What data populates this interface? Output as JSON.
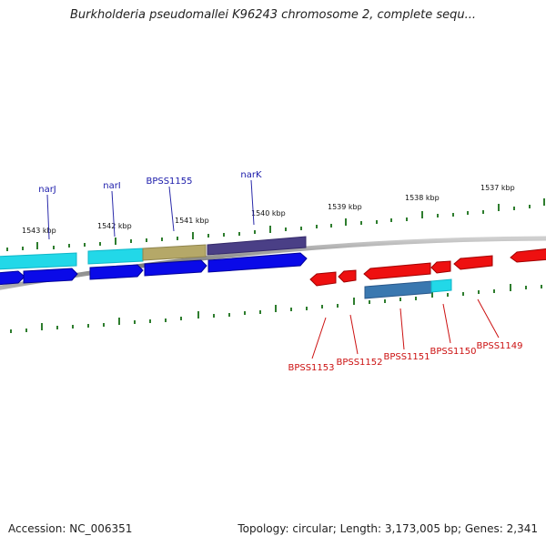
{
  "title": "Burkholderia pseudomallei K96243 chromosome 2, complete sequ...",
  "footer": {
    "accession": "Accession: NC_006351",
    "summary": "Topology: circular; Length: 3,173,005 bp; Genes: 2,341"
  },
  "colors": {
    "backbone": "#8a8a8a",
    "forward_gene": "#0000ee",
    "reverse_gene": "#ee0000",
    "tick": "#2e7d2e",
    "top_label": "#1a1aaa",
    "bottom_label": "#cc1111"
  },
  "scale_labels": [
    "1543 kbp",
    "1542 kbp",
    "1541 kbp",
    "1540 kbp",
    "1539 kbp",
    "1538 kbp",
    "1537 kbp"
  ],
  "forward_labels": [
    "narJ",
    "narI",
    "BPSS1155",
    "narK"
  ],
  "reverse_labels": [
    "BPSS1153",
    "BPSS1152",
    "BPSS1151",
    "BPSS1150",
    "BPSS1149"
  ]
}
